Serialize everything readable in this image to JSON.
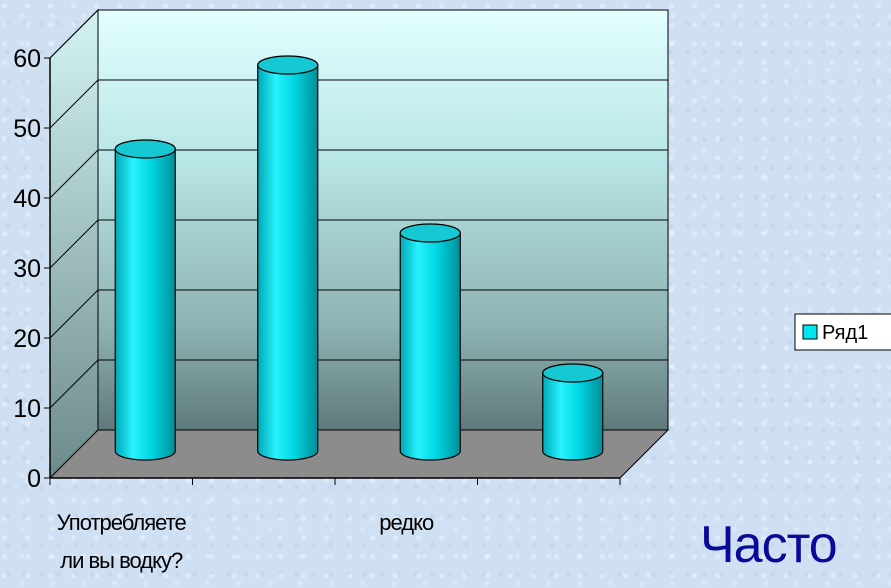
{
  "chart_data": {
    "type": "bar",
    "style": "3d-cylinder",
    "categories": [
      "Употребляете ли вы водку?",
      "",
      "редко",
      ""
    ],
    "category_label_lines": [
      [
        "Употребляете",
        "ли вы водку?"
      ],
      [
        ""
      ],
      [
        "редко"
      ],
      [
        ""
      ]
    ],
    "series": [
      {
        "name": "Ряд1",
        "values": [
          45,
          57,
          33,
          13
        ],
        "color": "#00e5ee"
      }
    ],
    "y_ticks": [
      "0",
      "10",
      "20",
      "30",
      "40",
      "50",
      "60"
    ],
    "ylim": [
      0,
      60
    ],
    "grid": true,
    "legend": "right",
    "title": "",
    "xlabel": "",
    "ylabel": ""
  },
  "footer_text": "Часто"
}
